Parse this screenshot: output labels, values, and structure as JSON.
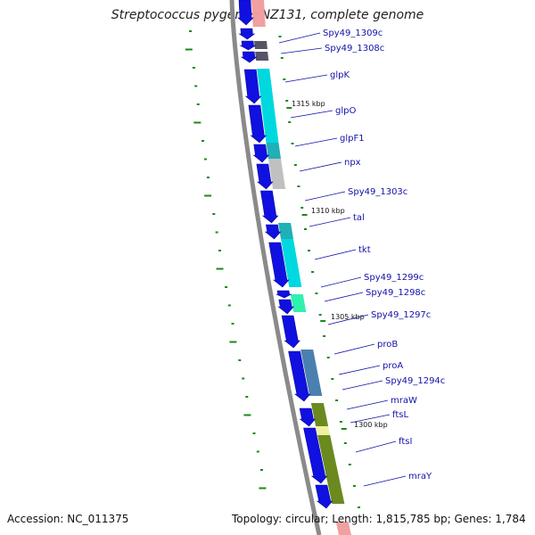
{
  "title": "Streptococcus pygenes NZ131, complete genome",
  "footer": {
    "accession": "Accession: NC_011375",
    "topology": "Topology: circular; Length: 1,815,785 bp; Genes: 1,784"
  },
  "scale_ticks": [
    {
      "label": "1315 kbp"
    },
    {
      "label": "1310 kbp"
    },
    {
      "label": "1305 kbp"
    },
    {
      "label": "1300 kbp"
    }
  ],
  "genes": [
    {
      "name": "Spy49_1309c"
    },
    {
      "name": "Spy49_1308c"
    },
    {
      "name": "glpK"
    },
    {
      "name": "glpO"
    },
    {
      "name": "glpF1"
    },
    {
      "name": "npx"
    },
    {
      "name": "Spy49_1303c"
    },
    {
      "name": "tal"
    },
    {
      "name": "tkt"
    },
    {
      "name": "Spy49_1299c"
    },
    {
      "name": "Spy49_1298c"
    },
    {
      "name": "Spy49_1297c"
    },
    {
      "name": "proB"
    },
    {
      "name": "proA"
    },
    {
      "name": "Spy49_1294c"
    },
    {
      "name": "mraW"
    },
    {
      "name": "ftsL"
    },
    {
      "name": "ftsI"
    },
    {
      "name": "mraY"
    }
  ],
  "colors": {
    "cds_arrow": "#1010e0",
    "backbone": "#8a8a8a",
    "tick": "#1a8a1a",
    "label": "#1111aa",
    "cyan": "#00d8e0",
    "teal": "#20b0b8",
    "grey": "#c0c0c0",
    "darkgrey": "#555566",
    "mint": "#30f0b0",
    "steelblue": "#4a80b0",
    "olive": "#6a8a20",
    "palepink": "#f0a0a0",
    "paleyellow": "#f0f0a0"
  }
}
